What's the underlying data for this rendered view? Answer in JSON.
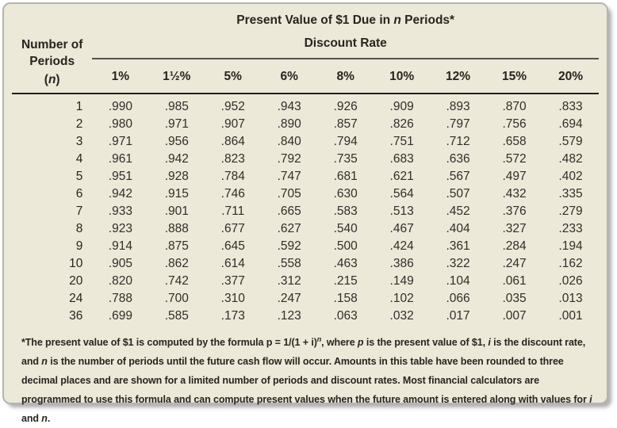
{
  "table": {
    "title_segments": [
      {
        "t": "Present Value of $1 Due in "
      },
      {
        "t": "n",
        "i": true
      },
      {
        "t": " Periods*"
      }
    ],
    "periods_header": {
      "line1": "Number of",
      "line2": "Periods",
      "line3_segments": [
        {
          "t": "("
        },
        {
          "t": "n",
          "i": true
        },
        {
          "t": ")"
        }
      ]
    },
    "discount_rate_label": "Discount Rate",
    "rate_headers": [
      "1%",
      "1½%",
      "5%",
      "6%",
      "8%",
      "10%",
      "12%",
      "15%",
      "20%"
    ],
    "rows": [
      {
        "n": "1",
        "values": [
          ".990",
          ".985",
          ".952",
          ".943",
          ".926",
          ".909",
          ".893",
          ".870",
          ".833"
        ]
      },
      {
        "n": "2",
        "values": [
          ".980",
          ".971",
          ".907",
          ".890",
          ".857",
          ".826",
          ".797",
          ".756",
          ".694"
        ]
      },
      {
        "n": "3",
        "values": [
          ".971",
          ".956",
          ".864",
          ".840",
          ".794",
          ".751",
          ".712",
          ".658",
          ".579"
        ]
      },
      {
        "n": "4",
        "values": [
          ".961",
          ".942",
          ".823",
          ".792",
          ".735",
          ".683",
          ".636",
          ".572",
          ".482"
        ]
      },
      {
        "n": "5",
        "values": [
          ".951",
          ".928",
          ".784",
          ".747",
          ".681",
          ".621",
          ".567",
          ".497",
          ".402"
        ]
      },
      {
        "n": "6",
        "values": [
          ".942",
          ".915",
          ".746",
          ".705",
          ".630",
          ".564",
          ".507",
          ".432",
          ".335"
        ]
      },
      {
        "n": "7",
        "values": [
          ".933",
          ".901",
          ".711",
          ".665",
          ".583",
          ".513",
          ".452",
          ".376",
          ".279"
        ]
      },
      {
        "n": "8",
        "values": [
          ".923",
          ".888",
          ".677",
          ".627",
          ".540",
          ".467",
          ".404",
          ".327",
          ".233"
        ]
      },
      {
        "n": "9",
        "values": [
          ".914",
          ".875",
          ".645",
          ".592",
          ".500",
          ".424",
          ".361",
          ".284",
          ".194"
        ]
      },
      {
        "n": "10",
        "values": [
          ".905",
          ".862",
          ".614",
          ".558",
          ".463",
          ".386",
          ".322",
          ".247",
          ".162"
        ]
      },
      {
        "n": "20",
        "values": [
          ".820",
          ".742",
          ".377",
          ".312",
          ".215",
          ".149",
          ".104",
          ".061",
          ".026"
        ]
      },
      {
        "n": "24",
        "values": [
          ".788",
          ".700",
          ".310",
          ".247",
          ".158",
          ".102",
          ".066",
          ".035",
          ".013"
        ]
      },
      {
        "n": "36",
        "values": [
          ".699",
          ".585",
          ".173",
          ".123",
          ".063",
          ".032",
          ".017",
          ".007",
          ".001"
        ]
      }
    ]
  },
  "footnote": {
    "segments": [
      {
        "t": "*The present value of $1 is computed by the formula p = 1/(1 + i)"
      },
      {
        "t": "n",
        "i": true,
        "sup": true
      },
      {
        "t": ", where "
      },
      {
        "t": "p",
        "i": true
      },
      {
        "t": " is the present value of $1, "
      },
      {
        "t": "i",
        "i": true
      },
      {
        "t": " is the discount rate, and "
      },
      {
        "t": "n",
        "i": true
      },
      {
        "t": " is the number of periods until the future cash flow will occur. Amounts in this table have been rounded to three decimal places and are shown for a limited number of periods and discount rates. Most financial calculators are programmed to use this formula and can compute present values when the future amount is entered along with values for "
      },
      {
        "t": "i",
        "i": true
      },
      {
        "t": " and "
      },
      {
        "t": "n",
        "i": true
      },
      {
        "t": "."
      }
    ]
  },
  "colors": {
    "card_background": "#ECE9D9",
    "card_border": "#b5b4ae",
    "text": "#28241f",
    "thick_rule": "#21201c",
    "thin_rule": "#55534d"
  }
}
